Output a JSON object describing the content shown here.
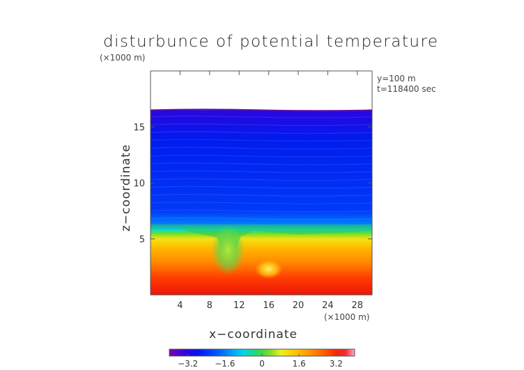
{
  "chart_data": {
    "type": "heatmap",
    "title": "disturbunce of potential temperature",
    "xlabel": "x−coordinate",
    "ylabel": "z−coordinate",
    "x_unit": "(×1000 m)",
    "y_unit": "(×1000 m)",
    "annotations": [
      "y=100 m",
      "t=118400 sec"
    ],
    "xlim": [
      0,
      30
    ],
    "ylim": [
      0,
      20
    ],
    "x_ticks": [
      4,
      8,
      12,
      16,
      20,
      24,
      28
    ],
    "x_tick_labels": [
      "4",
      "8",
      "12",
      "16",
      "20",
      "24",
      "28"
    ],
    "y_ticks": [
      5,
      10,
      15
    ],
    "y_tick_labels": [
      "5",
      "10",
      "15"
    ],
    "colorbar": {
      "range": [
        -4,
        4
      ],
      "ticks": [
        -3.2,
        -1.6,
        0,
        1.6,
        3.2
      ],
      "tick_labels": [
        "−3.2",
        "−1.6",
        "0",
        "1.6",
        "3.2"
      ]
    },
    "data_top_z": 16.5,
    "field_profile": [
      {
        "z": 0.0,
        "value": 3.4
      },
      {
        "z": 1.5,
        "value": 3.0
      },
      {
        "z": 3.0,
        "value": 2.2
      },
      {
        "z": 4.2,
        "value": 1.6
      },
      {
        "z": 5.0,
        "value": 1.0
      },
      {
        "z": 5.5,
        "value": 0.3
      },
      {
        "z": 5.8,
        "value": -0.6
      },
      {
        "z": 6.3,
        "value": -1.6
      },
      {
        "z": 7.5,
        "value": -2.3
      },
      {
        "z": 14.0,
        "value": -2.7
      },
      {
        "z": 16.3,
        "value": -3.2
      }
    ],
    "features": [
      {
        "kind": "cool-plume",
        "x": 10.5,
        "z": 4.0,
        "value": 0.4
      },
      {
        "kind": "warm-spot",
        "x": 16.0,
        "z": 2.3,
        "value": 1.2
      }
    ],
    "colors": {
      "below_data": "#ffffff",
      "frame": "#555555"
    }
  }
}
